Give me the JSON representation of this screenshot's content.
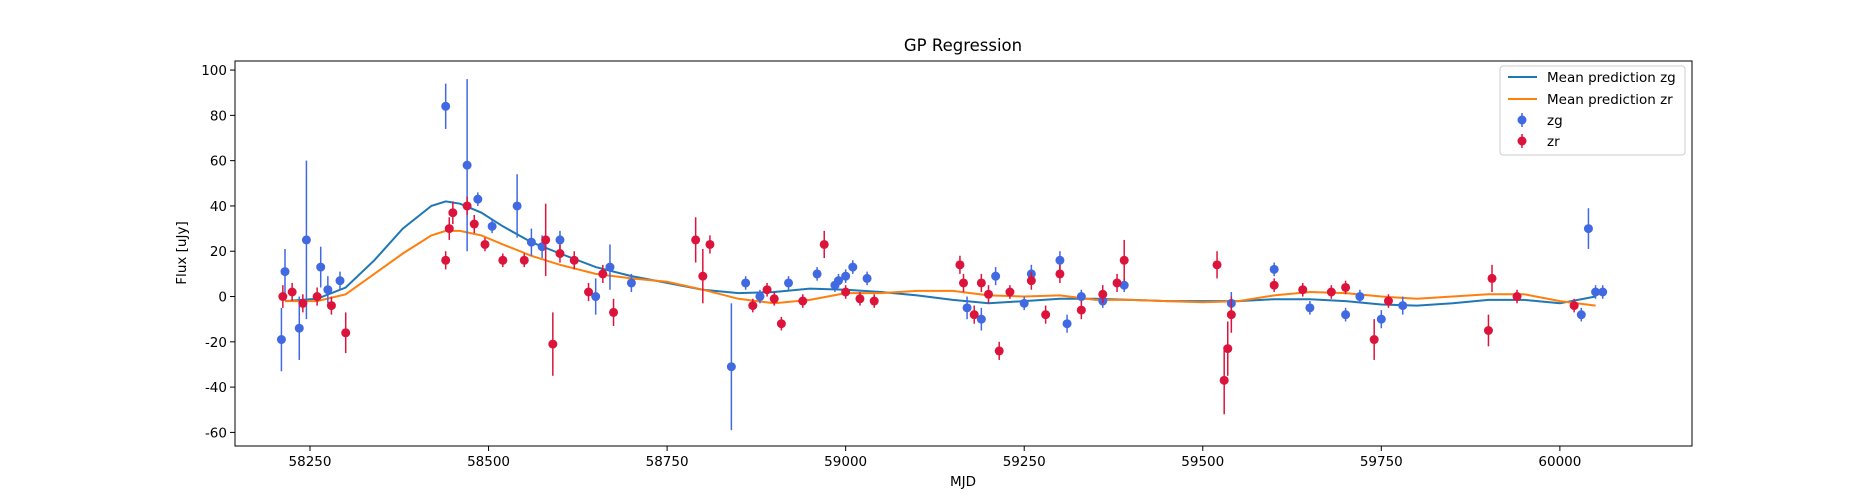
{
  "chart_data": {
    "type": "scatter",
    "title": "GP Regression",
    "xlabel": "MJD",
    "ylabel": "Flux [uJy]",
    "xlim": [
      58145,
      60185
    ],
    "ylim": [
      -66,
      104
    ],
    "xticks": [
      58250,
      58500,
      58750,
      59000,
      59250,
      59500,
      59750,
      60000
    ],
    "yticks": [
      -60,
      -40,
      -20,
      0,
      20,
      40,
      60,
      80,
      100
    ],
    "grid": false,
    "legend": "top-right",
    "colors": {
      "mean_zg": "#1f77b4",
      "mean_zr": "#ff7f0e",
      "zg": "#4169e1",
      "zr": "#dc143c"
    },
    "lines": [
      {
        "name": "Mean prediction zg",
        "color": "#1f77b4",
        "x": [
          58215,
          58260,
          58300,
          58340,
          58380,
          58420,
          58440,
          58460,
          58490,
          58520,
          58560,
          58600,
          58650,
          58700,
          58750,
          58800,
          58850,
          58900,
          58950,
          59000,
          59050,
          59100,
          59150,
          59200,
          59250,
          59300,
          59350,
          59400,
          59450,
          59500,
          59550,
          59600,
          59650,
          59700,
          59750,
          59800,
          59850,
          59900,
          59950,
          60000,
          60050
        ],
        "y": [
          -2,
          -1,
          4,
          16,
          30,
          40,
          42,
          41,
          37,
          31,
          24,
          19,
          13,
          9,
          6,
          3,
          1.5,
          2,
          3.5,
          3,
          2,
          0.5,
          -1.5,
          -3,
          -2,
          -1,
          -1,
          -1.5,
          -2,
          -2,
          -2,
          -1.2,
          -1.2,
          -2,
          -3.5,
          -4,
          -3,
          -1.5,
          -1.5,
          -3,
          0
        ]
      },
      {
        "name": "Mean prediction zr",
        "color": "#ff7f0e",
        "x": [
          58215,
          58260,
          58300,
          58340,
          58380,
          58420,
          58440,
          58460,
          58490,
          58520,
          58560,
          58600,
          58650,
          58700,
          58750,
          58800,
          58850,
          58900,
          58950,
          59000,
          59050,
          59100,
          59150,
          59200,
          59250,
          59300,
          59350,
          59400,
          59450,
          59500,
          59550,
          59600,
          59650,
          59700,
          59750,
          59800,
          59850,
          59900,
          59950,
          60000,
          60050
        ],
        "y": [
          -2,
          -2,
          1,
          10,
          19,
          27,
          29,
          29,
          27,
          23,
          18,
          14,
          10,
          8,
          6.5,
          3,
          -1,
          -3,
          -1.5,
          1.5,
          1.5,
          2.5,
          2.5,
          0.5,
          0,
          0.5,
          -1.5,
          -1.5,
          -2,
          -2.5,
          -2,
          0.5,
          2,
          1.5,
          0,
          -1,
          0,
          1,
          1,
          -2,
          -4
        ]
      }
    ],
    "series": [
      {
        "name": "zg",
        "color": "#4169e1",
        "x": [
          58210,
          58215,
          58235,
          58245,
          58265,
          58275,
          58292,
          58440,
          58470,
          58485,
          58505,
          58540,
          58560,
          58575,
          58600,
          58650,
          58670,
          58700,
          58840,
          58860,
          58880,
          58920,
          58960,
          58985,
          58990,
          59000,
          59010,
          59030,
          59170,
          59190,
          59210,
          59250,
          59260,
          59300,
          59310,
          59330,
          59360,
          59390,
          59540,
          59600,
          59650,
          59700,
          59720,
          59750,
          59780,
          60030,
          60040,
          60050,
          60060
        ],
        "y": [
          -19,
          11,
          -14,
          25,
          13,
          3,
          7,
          84,
          58,
          43,
          31,
          40,
          24,
          22,
          25,
          0,
          13,
          6,
          -31,
          6,
          0,
          6,
          10,
          5,
          7,
          9,
          13,
          8,
          -5,
          -10,
          9,
          -3,
          10,
          16,
          -12,
          0,
          -2,
          5,
          -3,
          12,
          -5,
          -8,
          0,
          -10,
          -4,
          -8,
          30,
          2,
          2
        ],
        "yerr": [
          14,
          10,
          14,
          35,
          9,
          6,
          4,
          10,
          38,
          3,
          3,
          14,
          6,
          5,
          4,
          8,
          10,
          4,
          28,
          3,
          3,
          3,
          3,
          3,
          3,
          3,
          3,
          3,
          5,
          5,
          4,
          3,
          4,
          4,
          4,
          3,
          3,
          3,
          5,
          3,
          3,
          3,
          3,
          4,
          4,
          3,
          9,
          3,
          3
        ]
      },
      {
        "name": "zr",
        "color": "#dc143c",
        "x": [
          58212,
          58225,
          58240,
          58260,
          58280,
          58300,
          58440,
          58445,
          58450,
          58470,
          58480,
          58495,
          58520,
          58550,
          58580,
          58590,
          58600,
          58620,
          58640,
          58660,
          58675,
          58790,
          58800,
          58810,
          58870,
          58890,
          58900,
          58910,
          58940,
          58970,
          59000,
          59020,
          59040,
          59160,
          59165,
          59180,
          59190,
          59200,
          59215,
          59230,
          59260,
          59280,
          59300,
          59330,
          59360,
          59380,
          59390,
          59520,
          59530,
          59535,
          59540,
          59600,
          59640,
          59680,
          59700,
          59740,
          59760,
          59900,
          59905,
          59940,
          60020
        ],
        "y": [
          0,
          2,
          -3,
          0,
          -4,
          -16,
          16,
          30,
          37,
          40,
          32,
          23,
          16,
          16,
          25,
          -21,
          19,
          16,
          2,
          10,
          -7,
          25,
          9,
          23,
          -4,
          3,
          -1,
          -12,
          -2,
          23,
          2,
          -1,
          -2,
          14,
          6,
          -8,
          6,
          1,
          -24,
          2,
          7,
          -8,
          10,
          -6,
          1,
          6,
          16,
          14,
          -37,
          -23,
          -8,
          5,
          3,
          2,
          4,
          -19,
          -2,
          -15,
          8,
          0,
          -4
        ],
        "yerr": [
          5,
          4,
          4,
          4,
          4,
          9,
          4,
          5,
          5,
          4,
          4,
          3,
          3,
          3,
          16,
          14,
          4,
          4,
          4,
          4,
          6,
          10,
          12,
          4,
          3,
          3,
          3,
          3,
          3,
          6,
          3,
          3,
          3,
          4,
          4,
          4,
          4,
          4,
          4,
          3,
          4,
          4,
          4,
          4,
          4,
          4,
          9,
          6,
          15,
          12,
          8,
          3,
          3,
          3,
          3,
          9,
          3,
          7,
          6,
          3,
          3
        ]
      }
    ]
  }
}
